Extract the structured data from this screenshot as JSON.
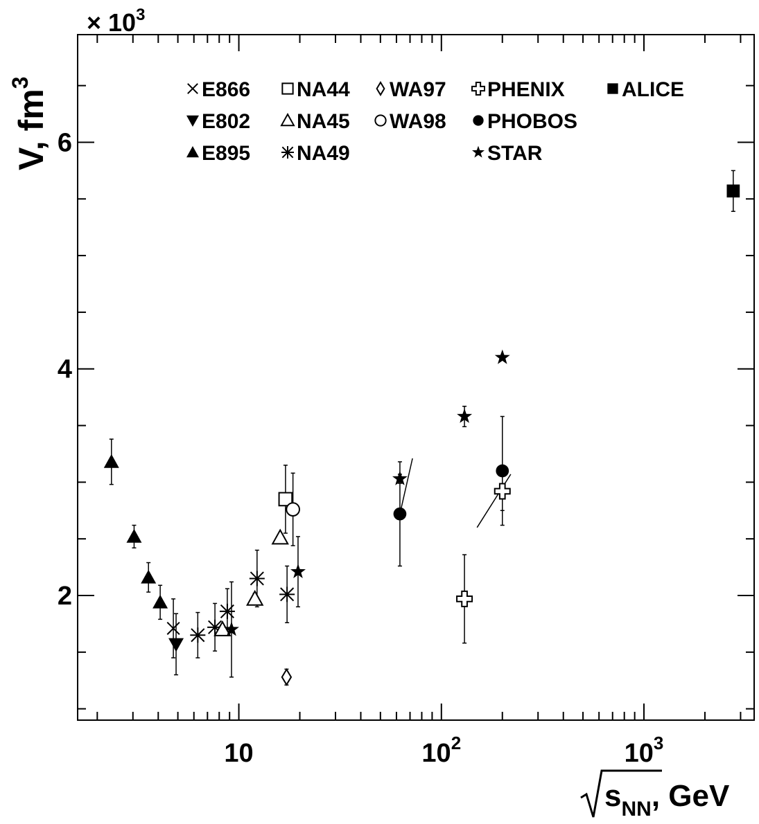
{
  "chart_data": {
    "type": "scatter",
    "title": "",
    "xlabel": "s",
    "xlabel_sub": "NN",
    "xlabel_unit": ", GeV",
    "ylabel": "V, fm",
    "ylabel_sup": "3",
    "y_multiplier": {
      "prefix": "× 10",
      "exp": "3"
    },
    "x_scale": "log",
    "xlim": [
      1.6,
      3500
    ],
    "ylim": [
      0.9,
      6.95
    ],
    "x_ticks": [
      {
        "value": 10,
        "base": "10",
        "exp": ""
      },
      {
        "value": 100,
        "base": "10",
        "exp": "2"
      },
      {
        "value": 1000,
        "base": "10",
        "exp": "3"
      }
    ],
    "y_ticks": [
      {
        "value": 2,
        "label": "2"
      },
      {
        "value": 4,
        "label": "4"
      },
      {
        "value": 6,
        "label": "6"
      }
    ],
    "legend": {
      "placement": "top",
      "entries": [
        {
          "name": "E866",
          "marker": "cross"
        },
        {
          "name": "NA44",
          "marker": "square-open"
        },
        {
          "name": "WA97",
          "marker": "diamond-open"
        },
        {
          "name": "PHENIX",
          "marker": "plus-open"
        },
        {
          "name": "ALICE",
          "marker": "square"
        },
        {
          "name": "E802",
          "marker": "triangle-down"
        },
        {
          "name": "NA45",
          "marker": "triangle-open"
        },
        {
          "name": "WA98",
          "marker": "circle-open"
        },
        {
          "name": "PHOBOS",
          "marker": "circle"
        },
        {
          "name": "E895",
          "marker": "triangle-up"
        },
        {
          "name": "NA49",
          "marker": "asterisk"
        },
        {
          "name": "STAR",
          "marker": "star"
        }
      ]
    },
    "series": [
      {
        "name": "E895",
        "marker": "triangle-up",
        "points": [
          {
            "x": 2.35,
            "y": 3.18,
            "err": 0.2
          },
          {
            "x": 3.04,
            "y": 2.52,
            "err": 0.1
          },
          {
            "x": 3.58,
            "y": 2.16,
            "err": 0.13
          },
          {
            "x": 4.09,
            "y": 1.94,
            "err": 0.15
          }
        ]
      },
      {
        "name": "E802",
        "marker": "triangle-down",
        "points": [
          {
            "x": 4.9,
            "y": 1.57,
            "err": 0.27
          }
        ]
      },
      {
        "name": "E866",
        "marker": "cross",
        "points": [
          {
            "x": 4.75,
            "y": 1.71,
            "err": 0.26
          }
        ]
      },
      {
        "name": "NA49",
        "marker": "asterisk",
        "points": [
          {
            "x": 6.27,
            "y": 1.65,
            "err": 0.2
          },
          {
            "x": 7.62,
            "y": 1.72,
            "err": 0.21
          },
          {
            "x": 8.77,
            "y": 1.86,
            "err": 0.2
          },
          {
            "x": 12.3,
            "y": 2.15,
            "err": 0.25
          },
          {
            "x": 17.3,
            "y": 2.01,
            "err": 0.25
          }
        ]
      },
      {
        "name": "NA45",
        "marker": "triangle-open",
        "points": [
          {
            "x": 8.3,
            "y": 1.7,
            "err": 0.0
          },
          {
            "x": 12.0,
            "y": 1.97,
            "err": 0.05
          },
          {
            "x": 16.0,
            "y": 2.51,
            "err": 0.0
          }
        ]
      },
      {
        "name": "NA44",
        "marker": "square-open",
        "points": [
          {
            "x": 17.0,
            "y": 2.85,
            "err": 0.3
          }
        ]
      },
      {
        "name": "WA98",
        "marker": "circle-open",
        "points": [
          {
            "x": 18.5,
            "y": 2.76,
            "err": 0.32
          }
        ]
      },
      {
        "name": "WA97",
        "marker": "diamond-open",
        "points": [
          {
            "x": 17.2,
            "y": 1.28,
            "err": 0.07
          }
        ]
      },
      {
        "name": "STAR",
        "marker": "star",
        "points": [
          {
            "x": 9.2,
            "y": 1.7,
            "err": 0.42
          },
          {
            "x": 19.6,
            "y": 2.21,
            "err": 0.31
          },
          {
            "x": 62.4,
            "y": 3.03,
            "err": 0.04
          },
          {
            "x": 130,
            "y": 3.58,
            "err": 0.09
          },
          {
            "x": 200,
            "y": 4.1,
            "err": 0.0
          }
        ]
      },
      {
        "name": "PHOBOS",
        "marker": "circle",
        "points": [
          {
            "x": 62.4,
            "y": 2.72,
            "err": 0.46
          },
          {
            "x": 200,
            "y": 3.1,
            "err": 0.48
          }
        ]
      },
      {
        "name": "PHENIX",
        "marker": "plus-open",
        "points": [
          {
            "x": 130,
            "y": 1.97,
            "err": 0.39
          },
          {
            "x": 200,
            "y": 2.92,
            "err": 0.17
          }
        ]
      },
      {
        "name": "ALICE",
        "marker": "square",
        "points": [
          {
            "x": 2760,
            "y": 5.57,
            "err": 0.18
          }
        ]
      }
    ],
    "line_segments": [
      {
        "from": {
          "x": 62.4,
          "y": 2.72
        },
        "to": {
          "x": 72,
          "y": 3.21
        }
      },
      {
        "from": {
          "x": 150,
          "y": 2.6
        },
        "to": {
          "x": 220,
          "y": 3.07
        }
      }
    ]
  }
}
